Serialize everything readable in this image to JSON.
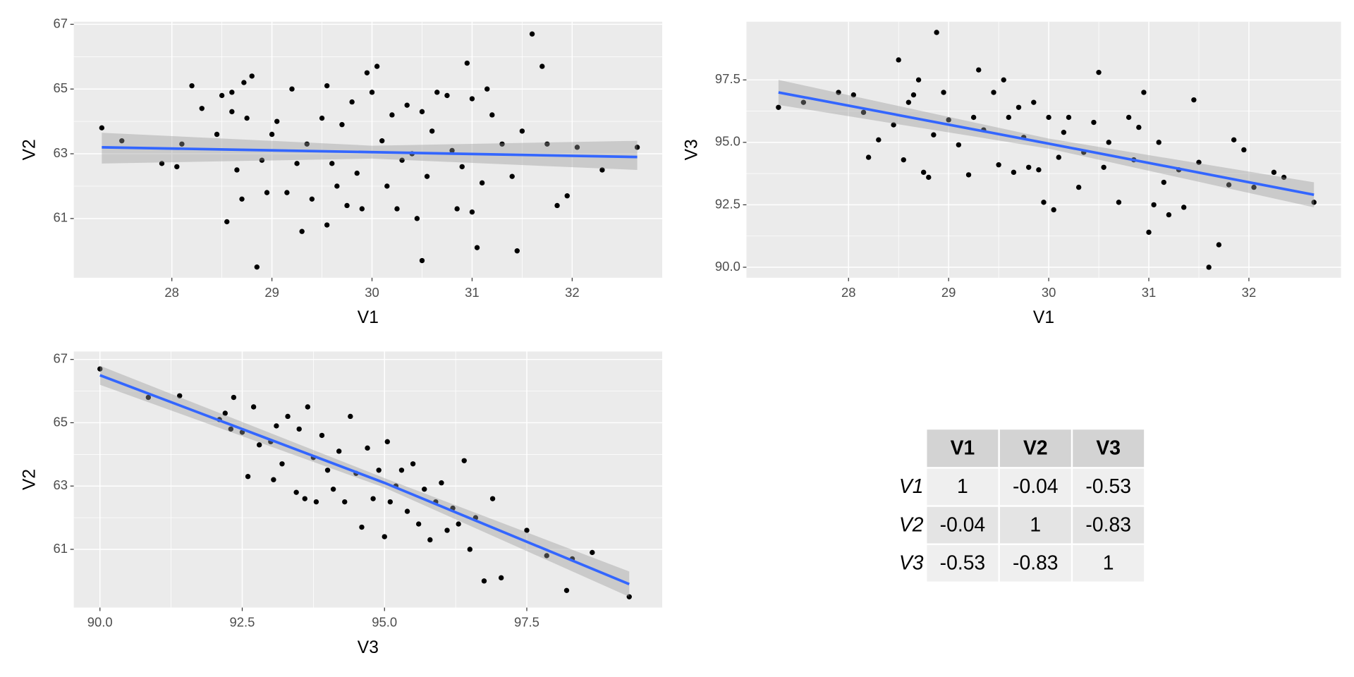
{
  "chart_data": [
    {
      "type": "scatter",
      "xlabel": "V1",
      "ylabel": "V2",
      "x": [
        27.3,
        27.5,
        27.9,
        28.05,
        28.1,
        28.2,
        28.3,
        28.45,
        28.5,
        28.55,
        28.6,
        28.6,
        28.65,
        28.7,
        28.72,
        28.75,
        28.8,
        28.85,
        28.9,
        28.95,
        29.0,
        29.05,
        29.15,
        29.2,
        29.25,
        29.3,
        29.35,
        29.4,
        29.5,
        29.55,
        29.55,
        29.6,
        29.65,
        29.7,
        29.75,
        29.8,
        29.85,
        29.9,
        29.95,
        30.0,
        30.05,
        30.1,
        30.15,
        30.2,
        30.25,
        30.3,
        30.35,
        30.4,
        30.45,
        30.5,
        30.5,
        30.55,
        30.6,
        30.65,
        30.75,
        30.8,
        30.85,
        30.9,
        30.95,
        31.0,
        31.0,
        31.05,
        31.1,
        31.15,
        31.2,
        31.3,
        31.4,
        31.45,
        31.5,
        31.6,
        31.7,
        31.75,
        31.85,
        31.95,
        32.05,
        32.3,
        32.65
      ],
      "y": [
        63.8,
        63.4,
        62.7,
        62.6,
        63.3,
        65.1,
        64.4,
        63.6,
        64.8,
        60.9,
        64.9,
        64.3,
        62.5,
        61.6,
        65.2,
        64.1,
        65.4,
        59.5,
        62.8,
        61.8,
        63.6,
        64.0,
        61.8,
        65.0,
        62.7,
        60.6,
        63.3,
        61.6,
        64.1,
        65.1,
        60.8,
        62.7,
        62.0,
        63.9,
        61.4,
        64.6,
        62.4,
        61.3,
        65.5,
        64.9,
        65.7,
        63.4,
        62.0,
        64.2,
        61.3,
        62.8,
        64.5,
        63.0,
        61.0,
        59.7,
        64.3,
        62.3,
        63.7,
        64.9,
        64.8,
        63.1,
        61.3,
        62.6,
        65.8,
        61.2,
        64.7,
        60.1,
        62.1,
        65.0,
        64.2,
        63.3,
        62.3,
        60.0,
        63.7,
        66.7,
        65.7,
        63.3,
        61.4,
        61.7,
        63.2,
        62.5,
        63.2
      ],
      "fit": {
        "x": [
          27.3,
          30.0,
          32.65
        ],
        "y": [
          63.2,
          63.05,
          62.9
        ],
        "lower": [
          62.7,
          62.85,
          62.5
        ],
        "upper": [
          63.65,
          63.25,
          63.4
        ]
      },
      "color": "#000000",
      "fit_color": "#3366ff",
      "xlim": [
        27.02,
        32.9
      ],
      "ylim": [
        59.17,
        67.08
      ],
      "xticks": [
        28,
        29,
        30,
        31,
        32
      ],
      "yticks": [
        61,
        63,
        65,
        67
      ],
      "grid": true
    },
    {
      "type": "scatter",
      "xlabel": "V1",
      "ylabel": "V3",
      "x": [
        27.3,
        27.55,
        27.9,
        28.05,
        28.15,
        28.2,
        28.3,
        28.45,
        28.5,
        28.55,
        28.6,
        28.65,
        28.7,
        28.75,
        28.8,
        28.85,
        28.88,
        28.95,
        29.0,
        29.1,
        29.2,
        29.25,
        29.3,
        29.35,
        29.45,
        29.5,
        29.55,
        29.6,
        29.65,
        29.7,
        29.75,
        29.8,
        29.85,
        29.9,
        29.95,
        30.0,
        30.05,
        30.1,
        30.15,
        30.2,
        30.3,
        30.35,
        30.45,
        30.5,
        30.55,
        30.6,
        30.7,
        30.8,
        30.85,
        30.9,
        30.95,
        31.0,
        31.05,
        31.1,
        31.15,
        31.2,
        31.3,
        31.35,
        31.45,
        31.5,
        31.6,
        31.7,
        31.8,
        31.85,
        31.95,
        32.05,
        32.25,
        32.35,
        32.65
      ],
      "y": [
        96.4,
        96.6,
        97.0,
        96.9,
        96.2,
        94.4,
        95.1,
        95.7,
        98.3,
        94.3,
        96.6,
        96.9,
        97.5,
        93.8,
        93.6,
        95.3,
        99.4,
        97.0,
        95.9,
        94.9,
        93.7,
        96.0,
        97.9,
        95.5,
        97.0,
        94.1,
        97.5,
        96.0,
        93.8,
        96.4,
        95.2,
        94.0,
        96.6,
        93.9,
        92.6,
        96.0,
        92.3,
        94.4,
        95.4,
        96.0,
        93.2,
        94.6,
        95.8,
        97.8,
        94.0,
        95.0,
        92.6,
        96.0,
        94.3,
        95.6,
        97.0,
        91.4,
        92.5,
        95.0,
        93.4,
        92.1,
        93.9,
        92.4,
        96.7,
        94.2,
        90.0,
        90.9,
        93.3,
        95.1,
        94.7,
        93.2,
        93.8,
        93.6,
        92.6
      ],
      "fit": {
        "x": [
          27.3,
          30.0,
          32.65
        ],
        "y": [
          97.0,
          94.95,
          92.9
        ],
        "lower": [
          96.5,
          94.75,
          92.4
        ],
        "upper": [
          97.5,
          95.15,
          93.4
        ]
      },
      "color": "#000000",
      "fit_color": "#3366ff",
      "xlim": [
        26.98,
        32.92
      ],
      "ylim": [
        89.58,
        99.83
      ],
      "xticks": [
        28,
        29,
        30,
        31,
        32
      ],
      "yticks": [
        {
          "value": 90,
          "label": "90.0"
        },
        92.5,
        {
          "value": 95,
          "label": "95.0"
        },
        97.5
      ],
      "grid": true
    },
    {
      "type": "scatter",
      "xlabel": "V3",
      "ylabel": "V2",
      "x": [
        90.0,
        90.85,
        91.4,
        92.1,
        92.2,
        92.3,
        92.35,
        92.5,
        92.6,
        92.7,
        92.8,
        93.0,
        93.05,
        93.1,
        93.2,
        93.3,
        93.45,
        93.5,
        93.6,
        93.65,
        93.75,
        93.8,
        93.9,
        94.0,
        94.1,
        94.2,
        94.3,
        94.4,
        94.5,
        94.6,
        94.7,
        94.8,
        94.9,
        95.0,
        95.05,
        95.1,
        95.2,
        95.3,
        95.4,
        95.5,
        95.6,
        95.7,
        95.8,
        95.9,
        96.0,
        96.1,
        96.2,
        96.3,
        96.4,
        96.5,
        96.6,
        96.75,
        96.9,
        97.05,
        97.5,
        97.85,
        98.2,
        98.3,
        98.65,
        99.3
      ],
      "y": [
        66.7,
        65.8,
        65.85,
        65.1,
        65.3,
        64.8,
        65.8,
        64.7,
        63.3,
        65.5,
        64.3,
        64.4,
        63.2,
        64.9,
        63.7,
        65.2,
        62.8,
        64.8,
        62.6,
        65.5,
        63.9,
        62.5,
        64.6,
        63.5,
        62.9,
        64.1,
        62.5,
        65.2,
        63.4,
        61.7,
        64.2,
        62.6,
        63.5,
        61.4,
        64.4,
        62.5,
        63.0,
        63.5,
        62.2,
        63.7,
        61.8,
        62.9,
        61.3,
        62.5,
        63.1,
        61.6,
        62.3,
        61.8,
        63.8,
        61.0,
        62.0,
        60.0,
        62.6,
        60.1,
        61.6,
        60.8,
        59.7,
        60.7,
        60.9,
        59.5
      ],
      "fit": {
        "x": [
          90.0,
          95.0,
          99.3
        ],
        "y": [
          66.5,
          63.1,
          59.9
        ],
        "lower": [
          66.2,
          62.95,
          59.5
        ],
        "upper": [
          66.8,
          63.25,
          60.3
        ]
      },
      "color": "#000000",
      "fit_color": "#3366ff",
      "xlim": [
        89.54,
        99.88
      ],
      "ylim": [
        59.16,
        67.25
      ],
      "xticks": [
        {
          "value": 90,
          "label": "90.0"
        },
        92.5,
        {
          "value": 95,
          "label": "95.0"
        },
        97.5
      ],
      "yticks": [
        61,
        63,
        65,
        67
      ],
      "grid": true
    }
  ],
  "table": {
    "columns": [
      "V1",
      "V2",
      "V3"
    ],
    "rows": [
      {
        "name": "V1",
        "values": [
          1,
          -0.04,
          -0.53
        ]
      },
      {
        "name": "V2",
        "values": [
          -0.04,
          1,
          -0.83
        ]
      },
      {
        "name": "V3",
        "values": [
          -0.53,
          -0.83,
          1
        ]
      }
    ]
  }
}
